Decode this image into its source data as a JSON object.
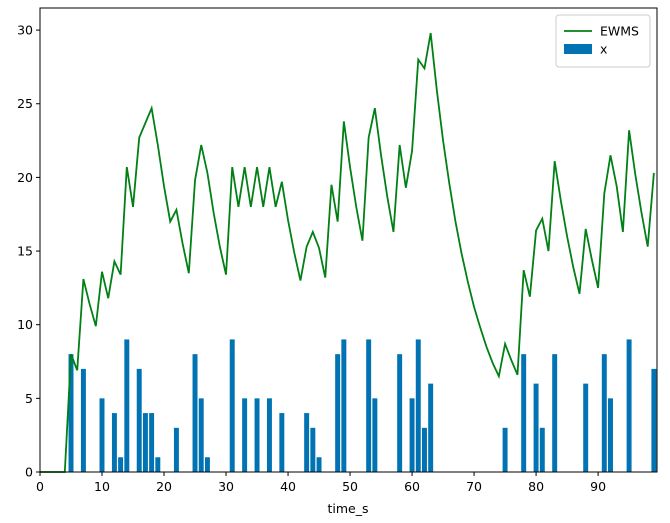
{
  "chart_data": {
    "type": "bar+line",
    "xlabel": "time_s",
    "ylabel": "",
    "xlim": [
      0,
      99.5
    ],
    "ylim": [
      0,
      31.5
    ],
    "xticks": [
      0,
      10,
      20,
      30,
      40,
      50,
      60,
      70,
      80,
      90
    ],
    "yticks": [
      0,
      5,
      10,
      15,
      20,
      25,
      30
    ],
    "legend_position": "top-right",
    "grid": false,
    "series": [
      {
        "name": "EWMS",
        "kind": "line",
        "color": "#008015",
        "x": [
          0,
          1,
          2,
          3,
          4,
          5,
          6,
          7,
          8,
          9,
          10,
          11,
          12,
          13,
          14,
          15,
          16,
          17,
          18,
          19,
          20,
          21,
          22,
          23,
          24,
          25,
          26,
          27,
          28,
          29,
          30,
          31,
          32,
          33,
          34,
          35,
          36,
          37,
          38,
          39,
          40,
          41,
          42,
          43,
          44,
          45,
          46,
          47,
          48,
          49,
          50,
          51,
          52,
          53,
          54,
          55,
          56,
          57,
          58,
          59,
          60,
          61,
          62,
          63,
          64,
          65,
          66,
          67,
          68,
          69,
          70,
          71,
          72,
          73,
          74,
          75,
          76,
          77,
          78,
          79,
          80,
          81,
          82,
          83,
          84,
          85,
          86,
          87,
          88,
          89,
          90,
          91,
          92,
          93,
          94,
          95,
          96,
          97,
          98,
          99
        ],
        "values": [
          0,
          0,
          0,
          0,
          0,
          8.0,
          6.9,
          13.1,
          11.4,
          9.9,
          13.6,
          11.8,
          14.3,
          13.4,
          20.7,
          18.0,
          22.7,
          23.7,
          24.7,
          22.2,
          19.4,
          17.0,
          17.8,
          15.5,
          13.5,
          19.8,
          22.2,
          20.3,
          17.6,
          15.3,
          13.4,
          20.7,
          18.0,
          20.7,
          18.0,
          20.7,
          18.0,
          20.7,
          18.0,
          19.7,
          17.1,
          14.9,
          13.0,
          15.3,
          16.3,
          15.2,
          13.2,
          19.5,
          17.0,
          23.8,
          20.7,
          18.0,
          15.7,
          22.7,
          24.7,
          21.5,
          18.7,
          16.3,
          22.2,
          19.3,
          21.8,
          28.0,
          27.4,
          29.8,
          25.9,
          22.5,
          19.6,
          17.0,
          14.8,
          12.9,
          11.2,
          9.8,
          8.5,
          7.4,
          6.5,
          8.7,
          7.6,
          6.6,
          13.7,
          11.9,
          16.4,
          17.2,
          15.0,
          21.1,
          18.4,
          16.0,
          13.9,
          12.1,
          16.5,
          14.4,
          12.5,
          18.9,
          21.5,
          19.4,
          16.3,
          23.2,
          20.2,
          17.6,
          15.3,
          20.3
        ]
      },
      {
        "name": "x",
        "kind": "bar",
        "color": "#0173b2",
        "x": [
          5,
          7,
          10,
          12,
          13,
          14,
          16,
          17,
          18,
          19,
          22,
          25,
          26,
          27,
          31,
          33,
          35,
          37,
          39,
          43,
          44,
          45,
          48,
          49,
          53,
          54,
          58,
          60,
          61,
          62,
          63,
          75,
          78,
          80,
          81,
          83,
          88,
          91,
          92,
          95,
          99
        ],
        "values": [
          8,
          7,
          5,
          4,
          1,
          9,
          7,
          4,
          4,
          1,
          3,
          8,
          5,
          1,
          9,
          5,
          5,
          5,
          4,
          4,
          3,
          1,
          8,
          9,
          9,
          5,
          8,
          5,
          9,
          3,
          6,
          3,
          8,
          6,
          3,
          8,
          6,
          8,
          5,
          9,
          7
        ]
      }
    ]
  }
}
